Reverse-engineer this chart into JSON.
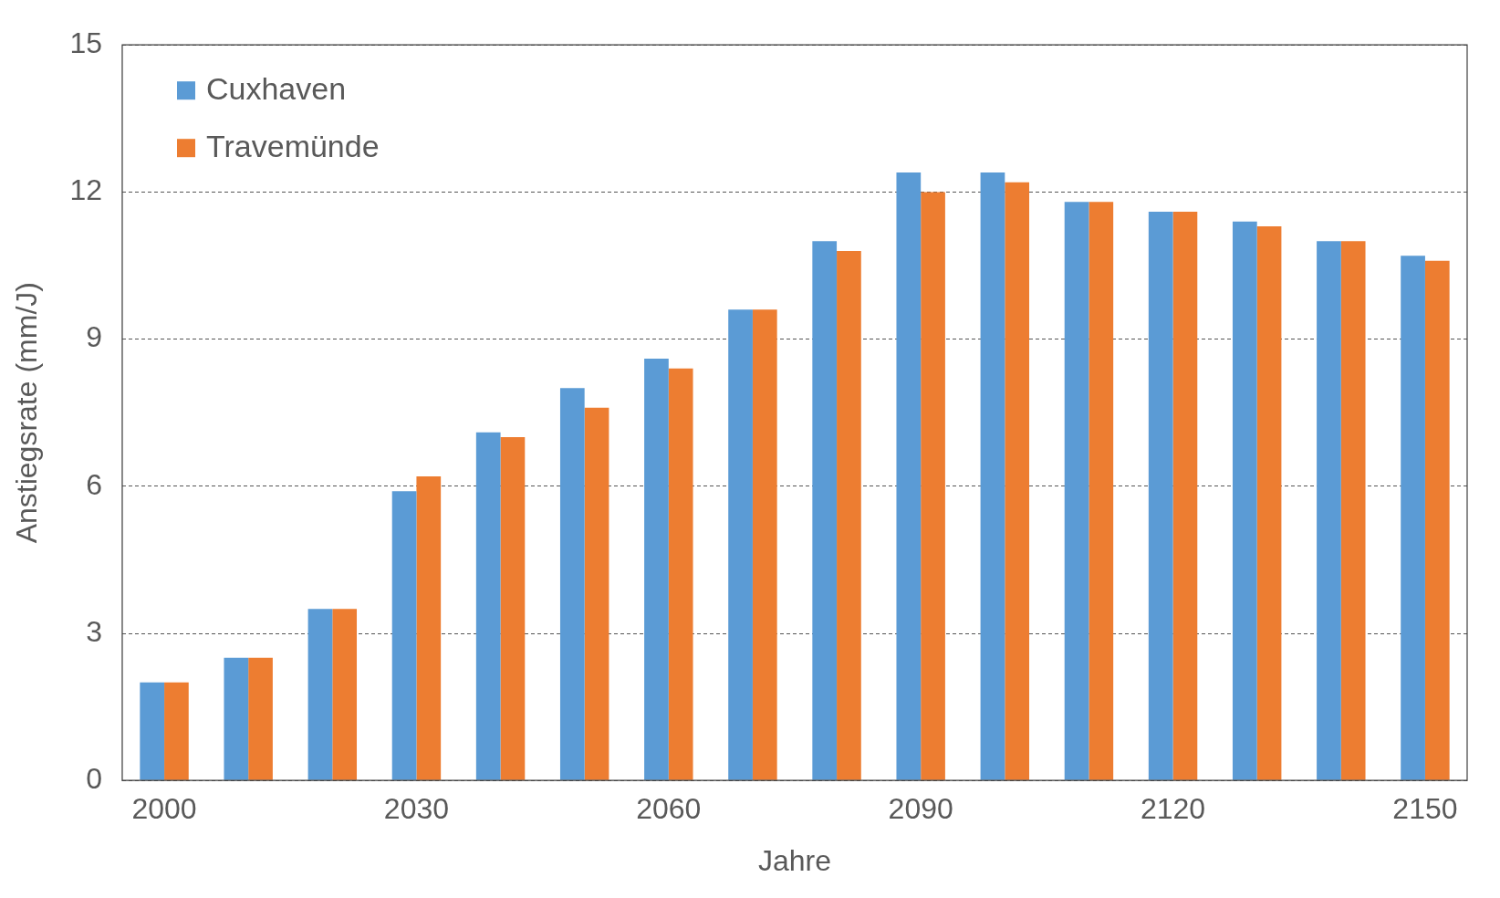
{
  "chart_data": {
    "type": "bar",
    "xlabel": "Jahre",
    "ylabel": "Anstiegsrate (mm/J)",
    "categories": [
      "2000",
      null,
      null,
      "2030",
      null,
      null,
      "2060",
      null,
      null,
      "2090",
      null,
      null,
      "2120",
      null,
      null,
      "2150"
    ],
    "series": [
      {
        "name": "Cuxhaven",
        "color": "#5b9bd5",
        "values": [
          2.0,
          2.5,
          3.5,
          5.9,
          7.1,
          8.0,
          8.6,
          9.6,
          11.0,
          12.4,
          12.4,
          11.8,
          11.6,
          11.4,
          11.0,
          10.7
        ]
      },
      {
        "name": "Travemünde",
        "color": "#ed7d31",
        "values": [
          2.0,
          2.5,
          3.5,
          6.2,
          7.0,
          7.6,
          8.4,
          9.6,
          10.8,
          12.0,
          12.2,
          11.8,
          11.6,
          11.3,
          11.0,
          10.6
        ]
      }
    ],
    "ylim": [
      0,
      15
    ],
    "yticks": [
      0,
      3,
      6,
      9,
      12,
      15
    ],
    "grid": "y",
    "legend": "top left"
  }
}
